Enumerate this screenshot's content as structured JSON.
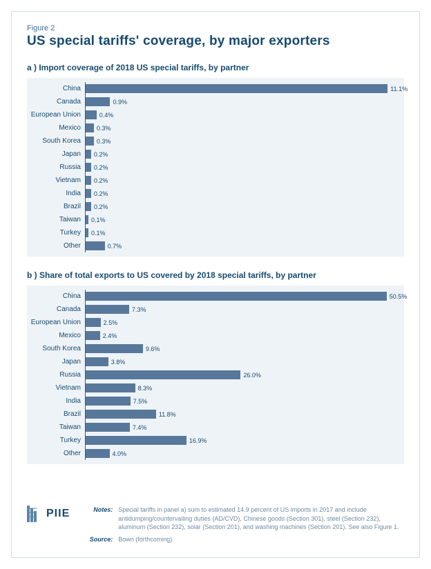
{
  "figure_label": "Figure 2",
  "title": "US special tariffs' coverage, by major exporters",
  "style": {
    "background_color": "#ffffff",
    "panel_background": "#eef3f7",
    "bar_color": "#57789b",
    "text_color": "#174a70",
    "border_color": "#d4dde4",
    "axis_color": "#2b5d82",
    "label_fontsize": 10,
    "value_fontsize": 9,
    "title_fontsize": 19,
    "panel_title_fontsize": 12
  },
  "panel_a": {
    "title": "a ) Import coverage of 2018 US special tariffs, by partner",
    "type": "bar-horizontal",
    "xmax": 11.5,
    "categories": [
      "China",
      "Canada",
      "European Union",
      "Mexico",
      "South Korea",
      "Japan",
      "Russia",
      "Vietnam",
      "India",
      "Brazil",
      "Taiwan",
      "Turkey",
      "Other"
    ],
    "values": [
      11.1,
      0.9,
      0.4,
      0.3,
      0.3,
      0.2,
      0.2,
      0.2,
      0.2,
      0.2,
      0.1,
      0.1,
      0.7
    ],
    "value_labels": [
      "11.1%",
      "0.9%",
      "0.4%",
      "0.3%",
      "0.3%",
      "0.2%",
      "0.2%",
      "0.2%",
      "0.2%",
      "0.2%",
      "0.1%",
      "0.1%",
      "0.7%"
    ]
  },
  "panel_b": {
    "title": "b ) Share of total exports to US covered by 2018 special tariffs, by partner",
    "type": "bar-horizontal",
    "xmax": 52.5,
    "categories": [
      "China",
      "Canada",
      "European Union",
      "Mexico",
      "South Korea",
      "Japan",
      "Russia",
      "Vietnam",
      "India",
      "Brazil",
      "Taiwan",
      "Turkey",
      "Other"
    ],
    "values": [
      50.5,
      7.3,
      2.5,
      2.4,
      9.6,
      3.8,
      26.0,
      8.3,
      7.5,
      11.8,
      7.4,
      16.9,
      4.0
    ],
    "value_labels": [
      "50.5%",
      "7.3%",
      "2.5%",
      "2.4%",
      "9.6%",
      "3.8%",
      "26.0%",
      "8.3%",
      "7.5%",
      "11.8%",
      "7.4%",
      "16.9%",
      "4.0%"
    ]
  },
  "notes": {
    "label": "Notes:",
    "text": "Special tariffs in panel a) sum to estimated 14.9 percent of US imports in 2017 and include antidumping/countervailing duties (AD/CVD), Chinese goods (Section 301), steel (Section 232), aluminum (Section 232), solar (Section 201), and washing machines (Section 201). See also Figure 1."
  },
  "source": {
    "label": "Source:",
    "text": "Bown (forthcoming)"
  },
  "logo_text": "PIIE"
}
